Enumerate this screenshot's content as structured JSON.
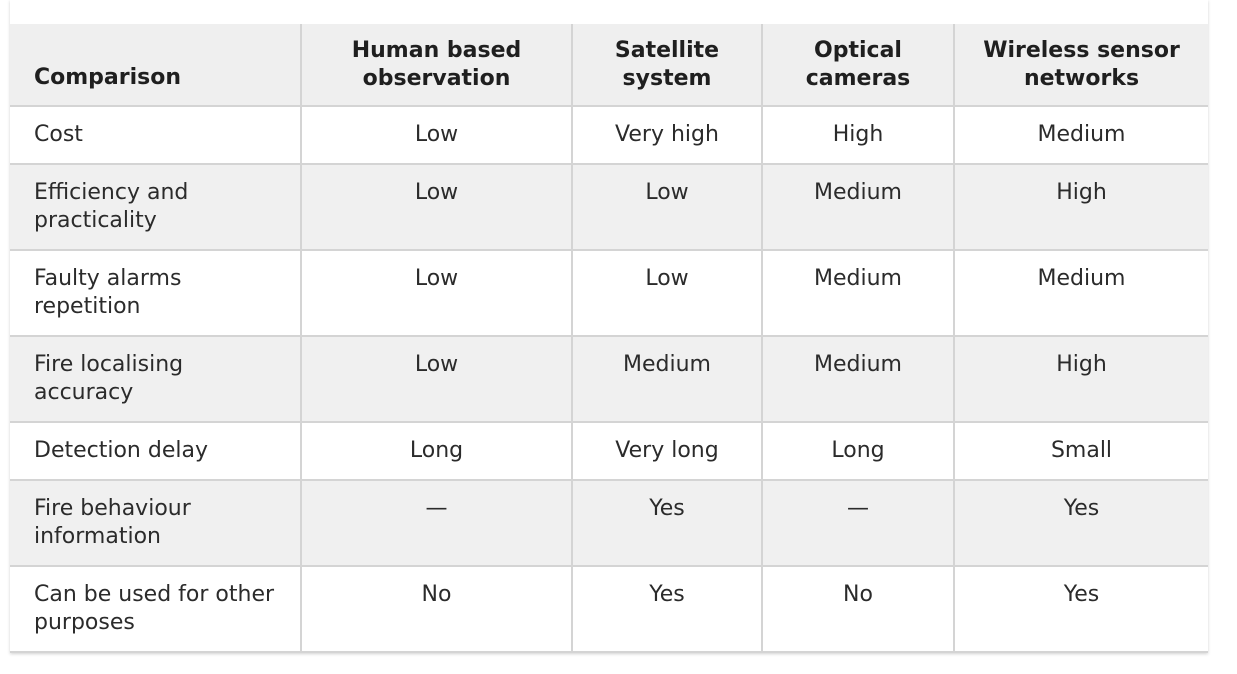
{
  "table": {
    "headers": [
      "Comparison",
      "Human based observation",
      "Satellite system",
      "Optical cameras",
      "Wireless sensor networks"
    ],
    "rows": [
      [
        "Cost",
        "Low",
        "Very high",
        "High",
        "Medium"
      ],
      [
        "Efficiency and practicality",
        "Low",
        "Low",
        "Medium",
        "High"
      ],
      [
        "Faulty alarms repetition",
        "Low",
        "Low",
        "Medium",
        "Medium"
      ],
      [
        "Fire localising accuracy",
        "Low",
        "Medium",
        "Medium",
        "High"
      ],
      [
        "Detection delay",
        "Long",
        "Very long",
        "Long",
        "Small"
      ],
      [
        "Fire behaviour information",
        "—",
        "Yes",
        "—",
        "Yes"
      ],
      [
        "Can be used for other purposes",
        "No",
        "Yes",
        "No",
        "Yes"
      ]
    ]
  },
  "colors": {
    "header_bg": "#efefef",
    "alt_row_bg": "#f0f0f0",
    "border": "#d4d4d4",
    "text": "#2b2b2b"
  }
}
